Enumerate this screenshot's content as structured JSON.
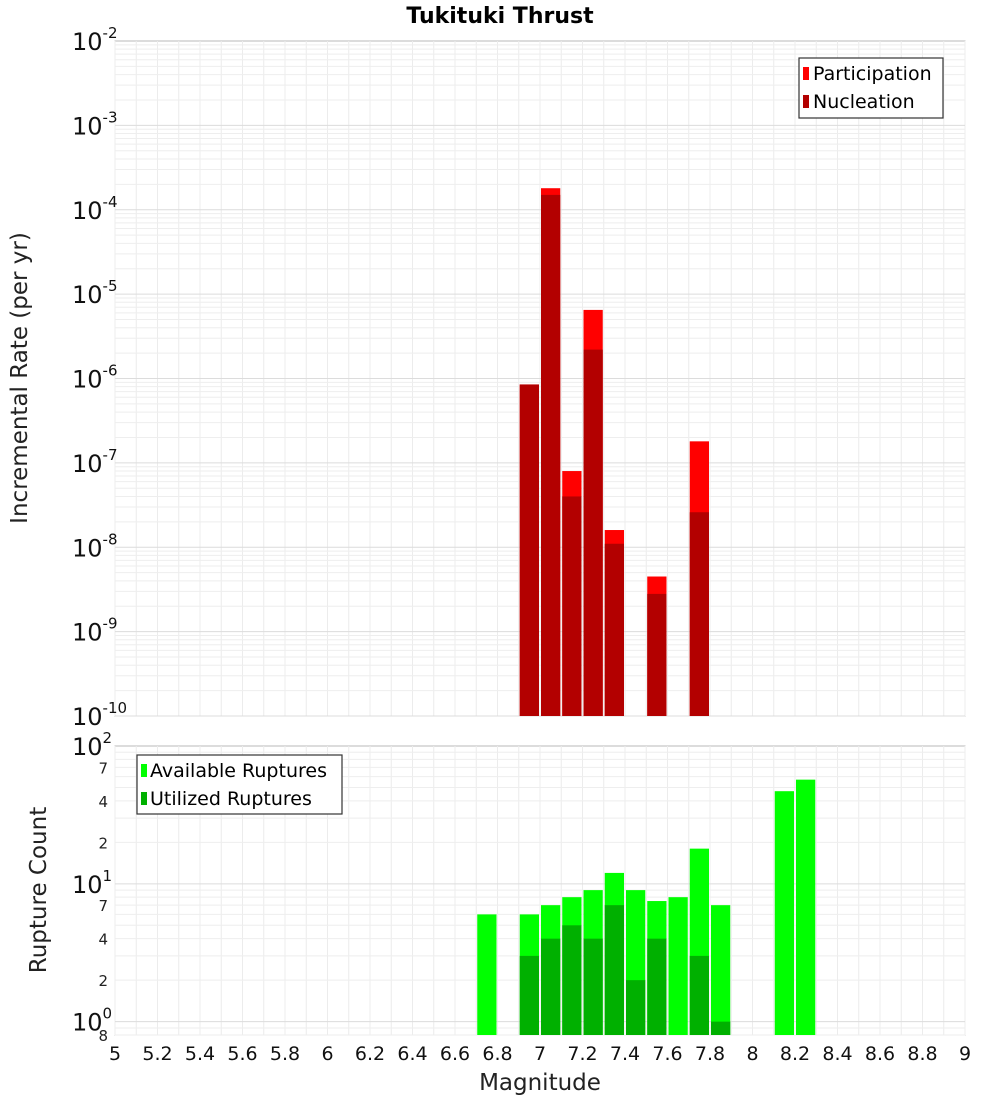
{
  "chart_data": [
    {
      "type": "bar",
      "title": "Tukituki Thrust",
      "xlabel": "",
      "ylabel": "Incremental Rate (per yr)",
      "yscale": "log",
      "ylim": [
        1e-10,
        0.01
      ],
      "xlim": [
        5,
        9
      ],
      "grid": true,
      "legend_position": "top-right",
      "y_tick_labels": [
        {
          "base": "10",
          "exp": "-10"
        },
        {
          "base": "10",
          "exp": "-9"
        },
        {
          "base": "10",
          "exp": "-8"
        },
        {
          "base": "10",
          "exp": "-7"
        },
        {
          "base": "10",
          "exp": "-6"
        },
        {
          "base": "10",
          "exp": "-5"
        },
        {
          "base": "10",
          "exp": "-4"
        },
        {
          "base": "10",
          "exp": "-3"
        },
        {
          "base": "10",
          "exp": "-2"
        }
      ],
      "series": [
        {
          "name": "Participation",
          "color": "#ff0000",
          "x": [
            6.95,
            7.05,
            7.15,
            7.25,
            7.35,
            7.55,
            7.75
          ],
          "values": [
            8.5e-07,
            0.00018,
            8e-08,
            6.5e-06,
            1.6e-08,
            4.5e-09,
            1.8e-07
          ]
        },
        {
          "name": "Nucleation",
          "color": "#b30000",
          "x": [
            6.95,
            7.05,
            7.15,
            7.25,
            7.35,
            7.55,
            7.75
          ],
          "values": [
            8.5e-07,
            0.00015,
            4e-08,
            2.2e-06,
            1.1e-08,
            2.8e-09,
            2.6e-08
          ]
        }
      ]
    },
    {
      "type": "bar",
      "title": "",
      "xlabel": "Magnitude",
      "ylabel": "Rupture Count",
      "yscale": "log",
      "ylim": [
        0.8,
        100
      ],
      "xlim": [
        5,
        9
      ],
      "grid": true,
      "legend_position": "top-left",
      "x_tick_labels": [
        "5",
        "5.2",
        "5.4",
        "5.6",
        "5.8",
        "6",
        "6.2",
        "6.4",
        "6.6",
        "6.8",
        "7",
        "7.2",
        "7.4",
        "7.6",
        "7.8",
        "8",
        "8.2",
        "8.4",
        "8.6",
        "8.8",
        "9"
      ],
      "y_tick_labels": [
        {
          "base": "10",
          "exp": "0"
        },
        {
          "base": "10",
          "exp": "1"
        },
        {
          "base": "10",
          "exp": "2"
        }
      ],
      "y_minor_labels": [
        {
          "label": "8",
          "value": 0.8
        },
        {
          "label": "2",
          "value": 2
        },
        {
          "label": "4",
          "value": 4
        },
        {
          "label": "7",
          "value": 7
        },
        {
          "label": "2",
          "value": 20
        },
        {
          "label": "4",
          "value": 40
        },
        {
          "label": "7",
          "value": 70
        }
      ],
      "series": [
        {
          "name": "Available Ruptures",
          "color": "#00ff00",
          "x": [
            6.75,
            6.95,
            7.05,
            7.15,
            7.25,
            7.35,
            7.45,
            7.55,
            7.65,
            7.75,
            7.85,
            8.15,
            8.25
          ],
          "values": [
            6,
            6,
            7,
            8,
            9,
            12,
            9,
            7.5,
            8,
            18,
            7,
            47,
            57
          ]
        },
        {
          "name": "Utilized Ruptures",
          "color": "#00b000",
          "x": [
            6.95,
            7.05,
            7.15,
            7.25,
            7.35,
            7.45,
            7.55,
            7.75,
            7.85
          ],
          "values": [
            3,
            4,
            5,
            4,
            7,
            2,
            4,
            3,
            1
          ]
        }
      ]
    }
  ]
}
